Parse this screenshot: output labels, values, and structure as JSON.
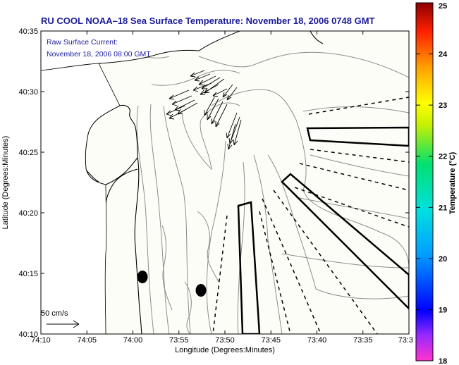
{
  "title": "RU COOL  NOAA–18  Sea Surface Temperature:  November 18, 2006 0748 GMT",
  "legend": {
    "line1": "Raw Surface Current:",
    "line2": "November 18, 2006 08:00 GMT"
  },
  "axes": {
    "xlabel": "Longitude (Degrees:Minutes)",
    "ylabel": "Latitude (Degrees:Minutes)",
    "x_ticks": [
      "74:10",
      "74:05",
      "74:00",
      "73:55",
      "73:50",
      "73:45",
      "73:40",
      "73:35",
      "73:3"
    ],
    "y_ticks": [
      "40:35",
      "40:30",
      "40:25",
      "40:20",
      "40:15",
      "40:10"
    ]
  },
  "scale_bar": {
    "label": "50 cm/s"
  },
  "colorbar": {
    "label": "Temperature (°C)",
    "ticks": [
      "25",
      "24",
      "23",
      "22",
      "21",
      "20",
      "19",
      "18"
    ],
    "range": [
      18,
      25
    ]
  },
  "colors": {
    "title_text": "#1a1a9a",
    "coastline": "#000000",
    "bathymetry": "#8c8c8c",
    "land": "#ffffff"
  }
}
